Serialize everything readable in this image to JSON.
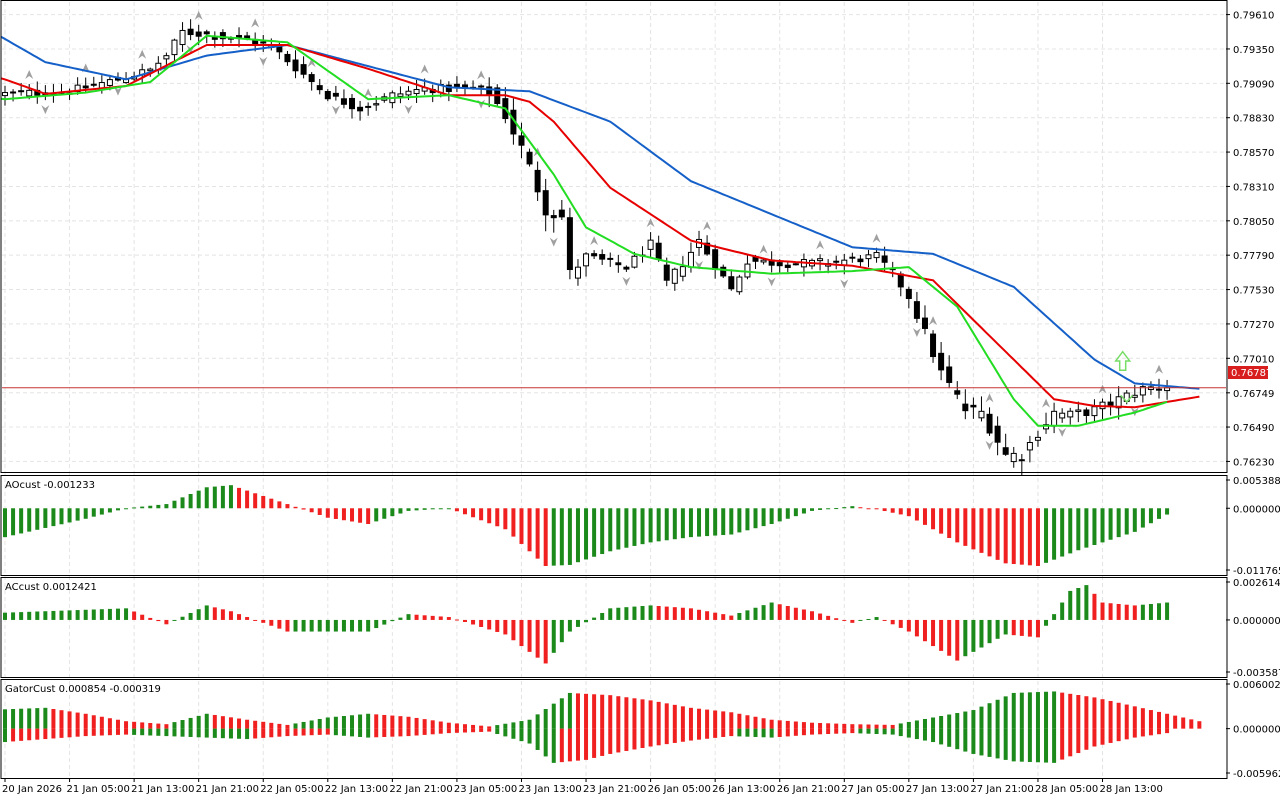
{
  "colors": {
    "background": "#ffffff",
    "grid": "#e4e4e4",
    "frame": "#000000",
    "bull_candle": "#ffffff",
    "bear_candle": "#000000",
    "alligator_jaw": "#1560c8",
    "alligator_teeth": "#e60000",
    "alligator_lips": "#22dd22",
    "price_line": "#c83232",
    "price_label_bg": "#d71d1d",
    "hist_up": "#1b8a1b",
    "hist_down": "#f02020",
    "fractal": "#a0a0a0",
    "signal_arrow": "#77dd66"
  },
  "price_axis_labels": [
    "0.79610",
    "0.79350",
    "0.79090",
    "0.78830",
    "0.78570",
    "0.78310",
    "0.78050",
    "0.77790",
    "0.77530",
    "0.77270",
    "0.77010",
    "0.76749",
    "0.76490",
    "0.76230"
  ],
  "time_axis_labels": [
    "20 Jan 2026",
    "21 Jan 05:00",
    "21 Jan 13:00",
    "21 Jan 21:00",
    "22 Jan 05:00",
    "22 Jan 13:00",
    "22 Jan 21:00",
    "23 Jan 05:00",
    "23 Jan 13:00",
    "23 Jan 21:00",
    "26 Jan 05:00",
    "26 Jan 13:00",
    "26 Jan 21:00",
    "27 Jan 05:00",
    "27 Jan 13:00",
    "27 Jan 21:00",
    "28 Jan 05:00",
    "28 Jan 13:00"
  ],
  "current_price_label": "0.76787",
  "panels": {
    "ao": {
      "title": "AOcust -0.001233",
      "axis_labels": [
        "0.005388",
        "0.000000",
        "-0.011765"
      ]
    },
    "ac": {
      "title": "ACcust 0.0012421",
      "axis_labels": [
        "0.0026144",
        "0.0000000",
        "-0.0035877"
      ]
    },
    "gator": {
      "title": "GatorCust 0.000854 -0.000319",
      "axis_labels": [
        "0.006002",
        "0.000000",
        "-0.005962"
      ]
    }
  },
  "chart_data": [
    {
      "type": "candlestick",
      "anchors": [
        [
          0,
          0.7901
        ],
        [
          8,
          0.7903
        ],
        [
          14,
          0.7912
        ],
        [
          18,
          0.7919
        ],
        [
          20,
          0.793
        ],
        [
          22,
          0.7948
        ],
        [
          25,
          0.7946
        ],
        [
          28,
          0.7943
        ],
        [
          30,
          0.7942
        ],
        [
          33,
          0.7937
        ],
        [
          36,
          0.7921
        ],
        [
          40,
          0.79
        ],
        [
          44,
          0.789
        ],
        [
          48,
          0.79
        ],
        [
          52,
          0.7905
        ],
        [
          58,
          0.7905
        ],
        [
          60,
          0.7902
        ],
        [
          62,
          0.7885
        ],
        [
          64,
          0.786
        ],
        [
          67,
          0.7815
        ],
        [
          69,
          0.7808
        ],
        [
          70,
          0.7765
        ],
        [
          72,
          0.7778
        ],
        [
          77,
          0.777
        ],
        [
          80,
          0.7787
        ],
        [
          82,
          0.7758
        ],
        [
          84,
          0.7773
        ],
        [
          86,
          0.779
        ],
        [
          90,
          0.7753
        ],
        [
          92,
          0.7775
        ],
        [
          96,
          0.7773
        ],
        [
          100,
          0.7773
        ],
        [
          104,
          0.7775
        ],
        [
          108,
          0.7778
        ],
        [
          110,
          0.7765
        ],
        [
          112,
          0.7748
        ],
        [
          114,
          0.772
        ],
        [
          116,
          0.769
        ],
        [
          119,
          0.7662
        ],
        [
          121,
          0.766
        ],
        [
          122,
          0.765
        ],
        [
          124,
          0.7628
        ],
        [
          126,
          0.7628
        ],
        [
          128,
          0.7645
        ],
        [
          130,
          0.766
        ],
        [
          132,
          0.7658
        ],
        [
          135,
          0.7662
        ],
        [
          138,
          0.767
        ],
        [
          141,
          0.7678
        ],
        [
          144,
          0.768
        ]
      ],
      "volatility": [
        [
          0,
          0.0011
        ],
        [
          56,
          0.0011
        ],
        [
          62,
          0.0016
        ],
        [
          68,
          0.0022
        ],
        [
          72,
          0.0012
        ],
        [
          110,
          0.0011
        ],
        [
          116,
          0.0017
        ],
        [
          124,
          0.0019
        ],
        [
          128,
          0.0015
        ],
        [
          144,
          0.0012
        ]
      ]
    },
    {
      "type": "line",
      "name": "Alligator Jaw",
      "points": [
        [
          -5,
          0.796
        ],
        [
          5,
          0.7925
        ],
        [
          15,
          0.7912
        ],
        [
          25,
          0.793
        ],
        [
          35,
          0.7938
        ],
        [
          45,
          0.7922
        ],
        [
          55,
          0.7906
        ],
        [
          65,
          0.7903
        ],
        [
          75,
          0.788
        ],
        [
          85,
          0.7835
        ],
        [
          95,
          0.781
        ],
        [
          105,
          0.7785
        ],
        [
          115,
          0.778
        ],
        [
          125,
          0.7755
        ],
        [
          135,
          0.77
        ],
        [
          140,
          0.7682
        ],
        [
          148,
          0.7678
        ]
      ]
    },
    {
      "type": "line",
      "name": "Alligator Teeth",
      "points": [
        [
          -5,
          0.792
        ],
        [
          0,
          0.7912
        ],
        [
          5,
          0.7901
        ],
        [
          15,
          0.7907
        ],
        [
          25,
          0.7938
        ],
        [
          35,
          0.7938
        ],
        [
          45,
          0.792
        ],
        [
          55,
          0.79
        ],
        [
          62,
          0.79
        ],
        [
          65,
          0.7895
        ],
        [
          68,
          0.788
        ],
        [
          75,
          0.783
        ],
        [
          85,
          0.779
        ],
        [
          95,
          0.7775
        ],
        [
          105,
          0.7771
        ],
        [
          115,
          0.776
        ],
        [
          125,
          0.77
        ],
        [
          130,
          0.767
        ],
        [
          135,
          0.7665
        ],
        [
          140,
          0.7664
        ],
        [
          144,
          0.7668
        ],
        [
          148,
          0.7672
        ]
      ]
    },
    {
      "type": "line",
      "name": "Alligator Lips",
      "points": [
        [
          -5,
          0.79
        ],
        [
          0,
          0.7897
        ],
        [
          10,
          0.7902
        ],
        [
          15,
          0.7907
        ],
        [
          18,
          0.791
        ],
        [
          25,
          0.7945
        ],
        [
          35,
          0.794
        ],
        [
          45,
          0.7897
        ],
        [
          55,
          0.79
        ],
        [
          62,
          0.789
        ],
        [
          68,
          0.784
        ],
        [
          72,
          0.78
        ],
        [
          78,
          0.778
        ],
        [
          85,
          0.777
        ],
        [
          95,
          0.7765
        ],
        [
          105,
          0.7767
        ],
        [
          112,
          0.777
        ],
        [
          118,
          0.774
        ],
        [
          122,
          0.77
        ],
        [
          125,
          0.767
        ],
        [
          128,
          0.765
        ],
        [
          133,
          0.765
        ],
        [
          140,
          0.766
        ],
        [
          144,
          0.7668
        ]
      ]
    },
    {
      "type": "bar",
      "name": "AOcust",
      "ylim": [
        -0.011765,
        0.005388
      ],
      "anchors": [
        [
          0,
          -0.0055
        ],
        [
          10,
          -0.002
        ],
        [
          15,
          0.0
        ],
        [
          20,
          0.0008
        ],
        [
          25,
          0.004
        ],
        [
          28,
          0.0044
        ],
        [
          35,
          0.0008
        ],
        [
          40,
          -0.0018
        ],
        [
          45,
          -0.003
        ],
        [
          50,
          -0.0005
        ],
        [
          55,
          0.0
        ],
        [
          62,
          -0.004
        ],
        [
          67,
          -0.011
        ],
        [
          70,
          -0.0108
        ],
        [
          75,
          -0.0082
        ],
        [
          80,
          -0.0065
        ],
        [
          85,
          -0.0055
        ],
        [
          90,
          -0.005
        ],
        [
          95,
          -0.003
        ],
        [
          100,
          -0.0005
        ],
        [
          105,
          0.0004
        ],
        [
          108,
          -0.0002
        ],
        [
          112,
          -0.0015
        ],
        [
          118,
          -0.0065
        ],
        [
          124,
          -0.0105
        ],
        [
          128,
          -0.011
        ],
        [
          133,
          -0.008
        ],
        [
          140,
          -0.0045
        ],
        [
          144,
          -0.0012
        ]
      ]
    },
    {
      "type": "bar",
      "name": "ACcust",
      "ylim": [
        -0.0035877,
        0.0026144
      ],
      "anchors": [
        [
          0,
          0.0005
        ],
        [
          15,
          0.0008
        ],
        [
          20,
          -0.0003
        ],
        [
          25,
          0.001
        ],
        [
          28,
          0.0006
        ],
        [
          35,
          -0.0008
        ],
        [
          45,
          -0.0008
        ],
        [
          50,
          0.0004
        ],
        [
          55,
          0.0002
        ],
        [
          62,
          -0.001
        ],
        [
          67,
          -0.003
        ],
        [
          70,
          -0.0008
        ],
        [
          75,
          0.0008
        ],
        [
          80,
          0.001
        ],
        [
          85,
          0.0008
        ],
        [
          90,
          0.0003
        ],
        [
          95,
          0.0012
        ],
        [
          100,
          0.0006
        ],
        [
          105,
          -0.0002
        ],
        [
          108,
          0.0002
        ],
        [
          112,
          -0.0008
        ],
        [
          118,
          -0.0028
        ],
        [
          124,
          -0.001
        ],
        [
          128,
          -0.0012
        ],
        [
          132,
          0.002
        ],
        [
          134,
          0.0024
        ],
        [
          136,
          0.0012
        ],
        [
          140,
          0.001
        ],
        [
          144,
          0.0012
        ]
      ]
    },
    {
      "type": "bar",
      "name": "GatorCust",
      "upper": [
        [
          0,
          0.0026
        ],
        [
          5,
          0.0028
        ],
        [
          10,
          0.002
        ],
        [
          15,
          0.001
        ],
        [
          20,
          0.0006
        ],
        [
          25,
          0.002
        ],
        [
          30,
          0.0012
        ],
        [
          35,
          0.0005
        ],
        [
          40,
          0.0015
        ],
        [
          45,
          0.002
        ],
        [
          50,
          0.0016
        ],
        [
          55,
          0.0008
        ],
        [
          60,
          0.0003
        ],
        [
          65,
          0.0012
        ],
        [
          70,
          0.0048
        ],
        [
          75,
          0.0045
        ],
        [
          80,
          0.0038
        ],
        [
          85,
          0.0028
        ],
        [
          90,
          0.0022
        ],
        [
          95,
          0.0012
        ],
        [
          100,
          0.0008
        ],
        [
          105,
          0.0006
        ],
        [
          110,
          0.0005
        ],
        [
          115,
          0.0015
        ],
        [
          120,
          0.0025
        ],
        [
          125,
          0.0048
        ],
        [
          130,
          0.005
        ],
        [
          135,
          0.0042
        ],
        [
          140,
          0.003
        ],
        [
          144,
          0.002
        ],
        [
          148,
          0.001
        ]
      ],
      "lower": [
        [
          0,
          -0.0018
        ],
        [
          5,
          -0.0014
        ],
        [
          10,
          -0.001
        ],
        [
          15,
          -0.0008
        ],
        [
          20,
          -0.001
        ],
        [
          25,
          -0.0012
        ],
        [
          30,
          -0.0014
        ],
        [
          35,
          -0.001
        ],
        [
          40,
          -0.0008
        ],
        [
          45,
          -0.0012
        ],
        [
          50,
          -0.001
        ],
        [
          55,
          -0.0006
        ],
        [
          60,
          -0.0004
        ],
        [
          65,
          -0.002
        ],
        [
          68,
          -0.0046
        ],
        [
          72,
          -0.0042
        ],
        [
          75,
          -0.0034
        ],
        [
          80,
          -0.0024
        ],
        [
          85,
          -0.0016
        ],
        [
          90,
          -0.001
        ],
        [
          95,
          -0.0012
        ],
        [
          100,
          -0.0008
        ],
        [
          105,
          -0.0006
        ],
        [
          110,
          -0.0008
        ],
        [
          115,
          -0.0018
        ],
        [
          120,
          -0.0034
        ],
        [
          125,
          -0.0044
        ],
        [
          130,
          -0.0046
        ],
        [
          135,
          -0.0024
        ],
        [
          140,
          -0.0012
        ],
        [
          144,
          -0.0006
        ]
      ],
      "ylim": [
        -0.005962,
        0.006002
      ]
    }
  ]
}
